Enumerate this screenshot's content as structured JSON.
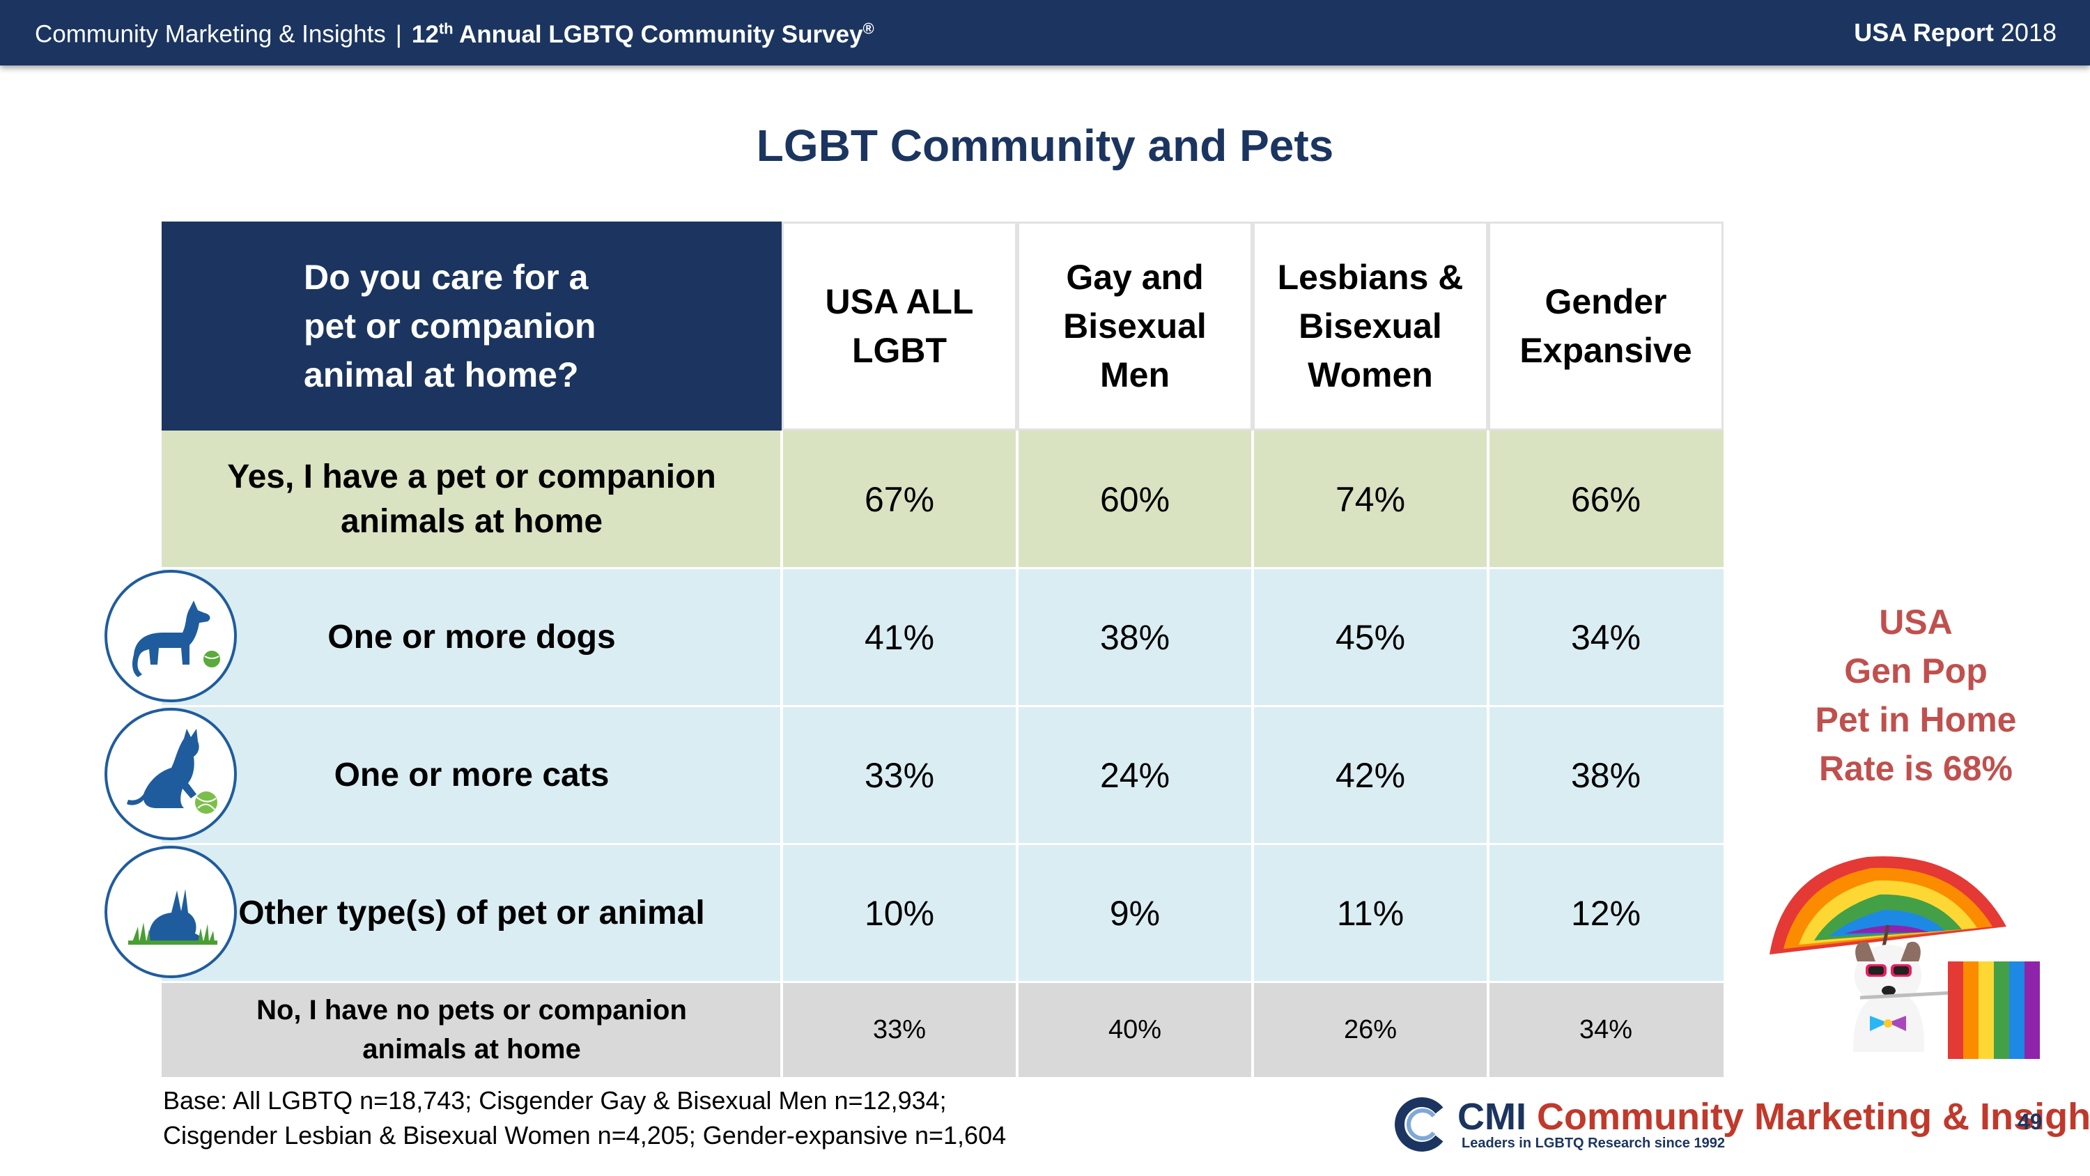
{
  "header": {
    "org": "Community Marketing & Insights",
    "separator": "|",
    "survey_prefix": "12",
    "survey_sup": "th",
    "survey_name": "Annual LGBTQ Community Survey",
    "survey_reg": "®",
    "report_bold": "USA Report",
    "report_year": "2018"
  },
  "title": "LGBT Community and Pets",
  "table": {
    "question": [
      "Do you care for a",
      "pet or companion",
      "animal at home?"
    ],
    "columns": [
      [
        "USA ALL",
        "LGBT"
      ],
      [
        "Gay and",
        "Bisexual",
        "Men"
      ],
      [
        "Lesbians &",
        "Bisexual",
        "Women"
      ],
      [
        "Gender",
        "Expansive"
      ]
    ],
    "rows": [
      {
        "label": [
          "Yes, I have a pet or companion",
          "animals at home"
        ],
        "values": [
          "67%",
          "60%",
          "74%",
          "66%"
        ]
      },
      {
        "label": [
          "One or more dogs"
        ],
        "values": [
          "41%",
          "38%",
          "45%",
          "34%"
        ]
      },
      {
        "label": [
          "One or more cats"
        ],
        "values": [
          "33%",
          "24%",
          "42%",
          "38%"
        ]
      },
      {
        "label": [
          "Other type(s) of pet or animal"
        ],
        "values": [
          "10%",
          "9%",
          "11%",
          "12%"
        ]
      },
      {
        "label": [
          "No, I have no pets or companion",
          "animals at home"
        ],
        "values": [
          "33%",
          "40%",
          "26%",
          "34%"
        ]
      }
    ]
  },
  "icons": [
    "dog-icon",
    "cat-icon",
    "rabbit-icon"
  ],
  "callout": [
    "USA",
    "Gen Pop",
    "Pet in Home",
    "Rate is 68%"
  ],
  "footnote": [
    "Base: All LGBTQ n=18,743; Cisgender Gay & Bisexual Men n=12,934;",
    "Cisgender Lesbian & Bisexual Women n=4,205; Gender-expansive n=1,604"
  ],
  "logo": {
    "abbr": "CMI",
    "name": "Community Marketing & Insights",
    "tagline": "Leaders in LGBTQ Research since 1992"
  },
  "page_number": "49",
  "colors": {
    "navy": "#1b3560",
    "yes_row": "#d9e3c2",
    "blue_rows": "#daedf2",
    "no_row": "#d9d9d9",
    "callout_red": "#c0504d"
  }
}
